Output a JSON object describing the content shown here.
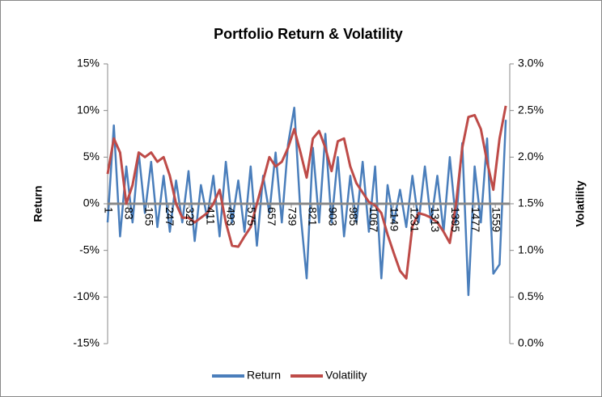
{
  "chart_data": {
    "type": "line",
    "title": "Portfolio Return & Volatility",
    "y_label": "Return",
    "y2_label": "Volatility",
    "x": [
      1,
      26,
      51,
      76,
      101,
      126,
      151,
      176,
      201,
      226,
      251,
      276,
      301,
      326,
      351,
      376,
      401,
      426,
      451,
      476,
      501,
      526,
      551,
      576,
      601,
      626,
      651,
      676,
      701,
      726,
      751,
      776,
      801,
      826,
      851,
      876,
      901,
      926,
      951,
      976,
      1001,
      1026,
      1051,
      1076,
      1101,
      1126,
      1151,
      1176,
      1201,
      1226,
      1251,
      1276,
      1301,
      1326,
      1351,
      1376,
      1401,
      1426,
      1451,
      1476,
      1501,
      1526,
      1551,
      1576,
      1601
    ],
    "xlim": [
      1,
      1617
    ],
    "xticks": [
      1,
      83,
      165,
      247,
      329,
      411,
      493,
      575,
      657,
      739,
      821,
      903,
      985,
      1067,
      1149,
      1231,
      1313,
      1395,
      1477,
      1559
    ],
    "ylim": [
      -15,
      15
    ],
    "yticks": [
      {
        "value": -15,
        "label": "-15%"
      },
      {
        "value": -10,
        "label": "-10%"
      },
      {
        "value": -5,
        "label": "-5%"
      },
      {
        "value": 0,
        "label": "0%"
      },
      {
        "value": 5,
        "label": "5%"
      },
      {
        "value": 10,
        "label": "10%"
      },
      {
        "value": 15,
        "label": "15%"
      }
    ],
    "y2lim": [
      0,
      3
    ],
    "y2ticks": [
      {
        "value": 0,
        "label": "0.0%"
      },
      {
        "value": 0.5,
        "label": "0.5%"
      },
      {
        "value": 1,
        "label": "1.0%"
      },
      {
        "value": 1.5,
        "label": "1.5%"
      },
      {
        "value": 2,
        "label": "2.0%"
      },
      {
        "value": 2.5,
        "label": "2.5%"
      },
      {
        "value": 3,
        "label": "3.0%"
      }
    ],
    "grid": false,
    "legend": "bottom",
    "series": [
      {
        "name": "Return",
        "color": "#4a7ebb",
        "values": [
          -2,
          8.4,
          -3.5,
          4,
          -2,
          5.5,
          -1,
          4.5,
          -2.5,
          3,
          -3,
          2.5,
          -2,
          3.5,
          -4,
          2,
          -1.5,
          3,
          -3.5,
          4.5,
          -2,
          2.5,
          -3,
          4,
          -4.5,
          3,
          -1,
          5.5,
          -2,
          6.4,
          10.3,
          -1,
          -8,
          6,
          -2,
          7.5,
          -2,
          5,
          -3.5,
          3,
          -2,
          4.5,
          -3,
          4,
          -8,
          2,
          -2,
          1.5,
          -2.5,
          3,
          -2,
          4,
          -2,
          3,
          -3,
          5,
          -2,
          6.5,
          -9.8,
          4,
          -2,
          7,
          -7.5,
          -6.5,
          9
        ]
      },
      {
        "name": "Volatility",
        "color": "#be4b48",
        "axis": "y2",
        "values": [
          1.82,
          2.2,
          2.05,
          1.5,
          1.7,
          2.05,
          2.0,
          2.05,
          1.95,
          2.0,
          1.8,
          1.5,
          1.35,
          1.35,
          1.3,
          1.35,
          1.4,
          1.5,
          1.65,
          1.3,
          1.05,
          1.04,
          1.15,
          1.25,
          1.5,
          1.75,
          2.0,
          1.9,
          1.95,
          2.1,
          2.3,
          2.05,
          1.78,
          2.2,
          2.28,
          2.1,
          1.85,
          2.17,
          2.2,
          1.9,
          1.72,
          1.62,
          1.52,
          1.48,
          1.4,
          1.17,
          0.97,
          0.78,
          0.7,
          1.26,
          1.4,
          1.38,
          1.35,
          1.3,
          1.2,
          1.08,
          1.5,
          2.1,
          2.43,
          2.45,
          2.3,
          1.95,
          1.65,
          2.2,
          2.55
        ]
      }
    ]
  }
}
